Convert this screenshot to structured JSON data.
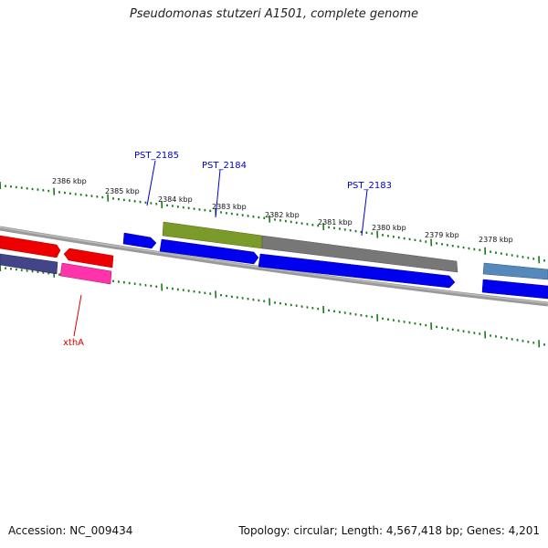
{
  "title": "Pseudomonas stutzeri A1501, complete genome",
  "footer": {
    "accession": "Accession: NC_009434",
    "stats": "Topology: circular; Length: 4,567,418 bp; Genes: 4,201"
  },
  "scale_labels": [
    "2386 kbp",
    "2385 kbp",
    "2384 kbp",
    "2383 kbp",
    "2382 kbp",
    "2381 kbp",
    "2380 kbp",
    "2379 kbp",
    "2378 kbp"
  ],
  "gene_labels": [
    {
      "text": "PST_2185",
      "color": "#0000cc"
    },
    {
      "text": "PST_2184",
      "color": "#0000cc"
    },
    {
      "text": "PST_2183",
      "color": "#0000cc"
    },
    {
      "text": "xthA",
      "color": "#dd0000"
    }
  ],
  "colors": {
    "backbone": "#888888",
    "ticks": "#1a7a1a",
    "gene_blue": "#0000ee",
    "gene_red": "#ee0000",
    "gene_pink": "#ff33aa",
    "gene_navy": "#444488",
    "gene_olive": "#7a9a2a",
    "gene_gray": "#777777",
    "gene_steel": "#5588bb"
  }
}
